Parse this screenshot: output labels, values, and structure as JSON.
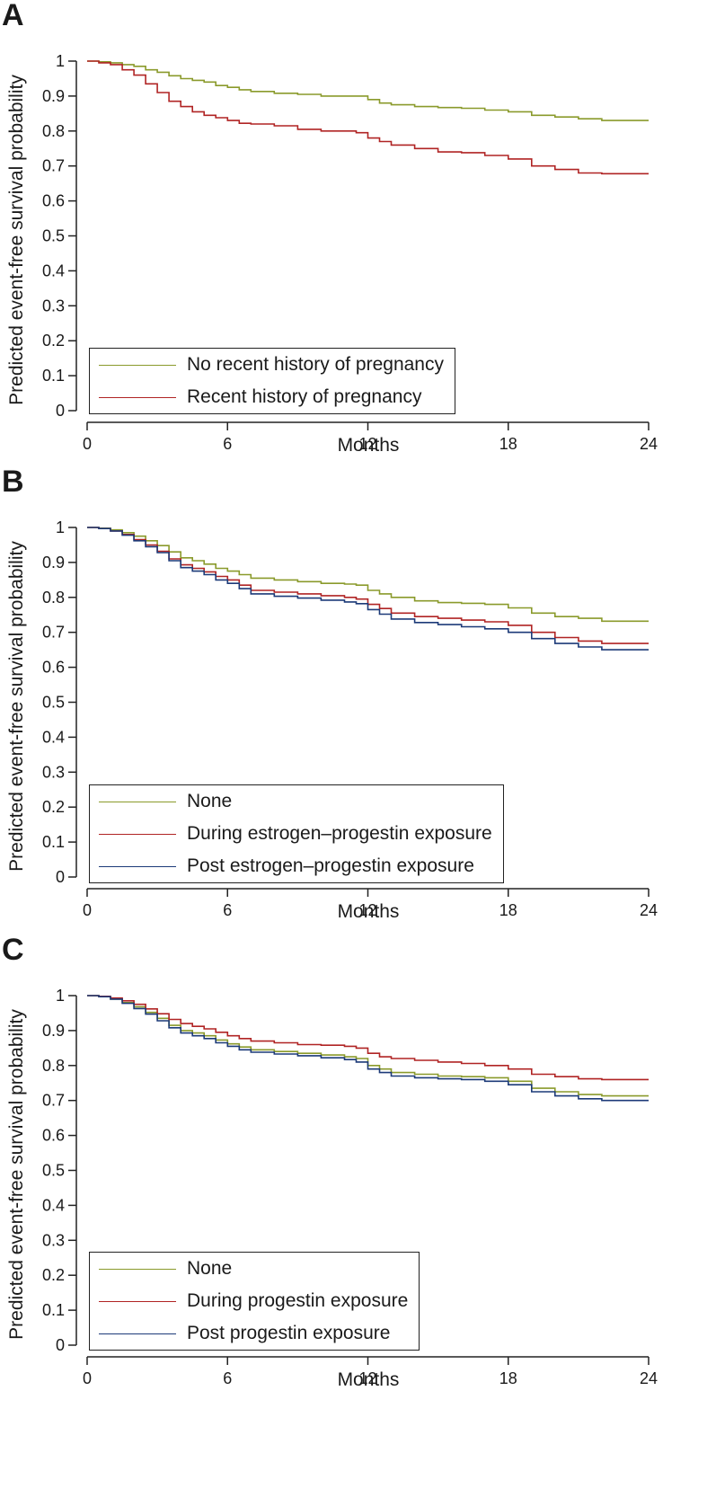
{
  "colors": {
    "olive": "#8a9a2b",
    "red": "#b02424",
    "navy": "#1c3a78",
    "axis": "#222222"
  },
  "chart_data": [
    {
      "panel": "A",
      "type": "line",
      "xlabel": "Months",
      "ylabel": "Predicted event-free survival probability",
      "xlim": [
        0,
        24
      ],
      "ylim": [
        0,
        1
      ],
      "xticks": [
        0,
        6,
        12,
        18,
        24
      ],
      "xtick_labels": [
        "0",
        "6",
        "12",
        "18",
        "24"
      ],
      "yticks": [
        0,
        0.1,
        0.2,
        0.3,
        0.4,
        0.5,
        0.6,
        0.7,
        0.8,
        0.9,
        1
      ],
      "ytick_labels": [
        "0",
        "0.1",
        "0.2",
        "0.3",
        "0.4",
        "0.5",
        "0.6",
        "0.7",
        "0.8",
        "0.9",
        "1"
      ],
      "legend_position": "bottom-left",
      "series": [
        {
          "name": "No recent history of pregnancy",
          "color_key": "olive",
          "x": [
            0,
            0.5,
            1,
            1.5,
            2,
            2.5,
            3,
            3.5,
            4,
            4.5,
            5,
            5.5,
            6,
            6.5,
            7,
            8,
            9,
            10,
            11,
            11.5,
            12,
            12.5,
            13,
            14,
            15,
            16,
            17,
            18,
            19,
            20,
            21,
            22,
            24
          ],
          "y": [
            1,
            0.998,
            0.995,
            0.99,
            0.985,
            0.975,
            0.968,
            0.958,
            0.95,
            0.945,
            0.94,
            0.93,
            0.925,
            0.918,
            0.913,
            0.908,
            0.905,
            0.9,
            0.9,
            0.9,
            0.89,
            0.88,
            0.875,
            0.87,
            0.867,
            0.865,
            0.86,
            0.855,
            0.845,
            0.84,
            0.835,
            0.83,
            0.83
          ]
        },
        {
          "name": "Recent history of pregnancy",
          "color_key": "red",
          "x": [
            0,
            0.5,
            1,
            1.5,
            2,
            2.5,
            3,
            3.5,
            4,
            4.5,
            5,
            5.5,
            6,
            6.5,
            7,
            8,
            9,
            10,
            11,
            11.5,
            12,
            12.5,
            13,
            14,
            15,
            16,
            17,
            18,
            19,
            20,
            21,
            22,
            24
          ],
          "y": [
            1,
            0.995,
            0.99,
            0.975,
            0.96,
            0.935,
            0.91,
            0.885,
            0.87,
            0.855,
            0.845,
            0.838,
            0.83,
            0.822,
            0.82,
            0.815,
            0.805,
            0.8,
            0.8,
            0.795,
            0.78,
            0.77,
            0.76,
            0.75,
            0.74,
            0.738,
            0.73,
            0.72,
            0.7,
            0.69,
            0.68,
            0.678,
            0.678
          ]
        }
      ]
    },
    {
      "panel": "B",
      "type": "line",
      "xlabel": "Months",
      "ylabel": "Predicted event-free survival probability",
      "xlim": [
        0,
        24
      ],
      "ylim": [
        0,
        1
      ],
      "xticks": [
        0,
        6,
        12,
        18,
        24
      ],
      "xtick_labels": [
        "0",
        "6",
        "12",
        "18",
        "24"
      ],
      "yticks": [
        0,
        0.1,
        0.2,
        0.3,
        0.4,
        0.5,
        0.6,
        0.7,
        0.8,
        0.9,
        1
      ],
      "ytick_labels": [
        "0",
        "0.1",
        "0.2",
        "0.3",
        "0.4",
        "0.5",
        "0.6",
        "0.7",
        "0.8",
        "0.9",
        "1"
      ],
      "legend_position": "bottom-left",
      "series": [
        {
          "name": "None",
          "color_key": "olive",
          "x": [
            0,
            0.5,
            1,
            1.5,
            2,
            2.5,
            3,
            3.5,
            4,
            4.5,
            5,
            5.5,
            6,
            6.5,
            7,
            8,
            9,
            10,
            11,
            11.5,
            12,
            12.5,
            13,
            14,
            15,
            16,
            17,
            18,
            19,
            20,
            21,
            22,
            24
          ],
          "y": [
            1,
            0.998,
            0.993,
            0.985,
            0.975,
            0.962,
            0.948,
            0.93,
            0.913,
            0.905,
            0.895,
            0.883,
            0.875,
            0.865,
            0.855,
            0.85,
            0.845,
            0.84,
            0.838,
            0.835,
            0.82,
            0.81,
            0.8,
            0.79,
            0.785,
            0.783,
            0.78,
            0.77,
            0.755,
            0.745,
            0.74,
            0.732,
            0.732
          ]
        },
        {
          "name": "During estrogen–progestin exposure",
          "color_key": "red",
          "x": [
            0,
            0.5,
            1,
            1.5,
            2,
            2.5,
            3,
            3.5,
            4,
            4.5,
            5,
            5.5,
            6,
            6.5,
            7,
            8,
            9,
            10,
            11,
            11.5,
            12,
            12.5,
            13,
            14,
            15,
            16,
            17,
            18,
            19,
            20,
            21,
            22,
            24
          ],
          "y": [
            1,
            0.997,
            0.99,
            0.98,
            0.965,
            0.95,
            0.932,
            0.91,
            0.893,
            0.883,
            0.873,
            0.86,
            0.85,
            0.835,
            0.82,
            0.815,
            0.81,
            0.805,
            0.8,
            0.795,
            0.78,
            0.768,
            0.755,
            0.745,
            0.74,
            0.735,
            0.73,
            0.72,
            0.7,
            0.685,
            0.675,
            0.668,
            0.668
          ]
        },
        {
          "name": "Post estrogen–progestin exposure",
          "color_key": "navy",
          "x": [
            0,
            0.5,
            1,
            1.5,
            2,
            2.5,
            3,
            3.5,
            4,
            4.5,
            5,
            5.5,
            6,
            6.5,
            7,
            8,
            9,
            10,
            11,
            11.5,
            12,
            12.5,
            13,
            14,
            15,
            16,
            17,
            18,
            19,
            20,
            21,
            22,
            24
          ],
          "y": [
            1,
            0.997,
            0.99,
            0.978,
            0.962,
            0.945,
            0.928,
            0.905,
            0.885,
            0.875,
            0.865,
            0.85,
            0.84,
            0.825,
            0.81,
            0.803,
            0.798,
            0.792,
            0.787,
            0.782,
            0.765,
            0.752,
            0.738,
            0.728,
            0.722,
            0.716,
            0.71,
            0.7,
            0.682,
            0.668,
            0.658,
            0.65,
            0.65
          ]
        }
      ]
    },
    {
      "panel": "C",
      "type": "line",
      "xlabel": "Months",
      "ylabel": "Predicted event-free survival probability",
      "xlim": [
        0,
        24
      ],
      "ylim": [
        0,
        1
      ],
      "xticks": [
        0,
        6,
        12,
        18,
        24
      ],
      "xtick_labels": [
        "0",
        "6",
        "12",
        "18",
        "24"
      ],
      "yticks": [
        0,
        0.1,
        0.2,
        0.3,
        0.4,
        0.5,
        0.6,
        0.7,
        0.8,
        0.9,
        1
      ],
      "ytick_labels": [
        "0",
        "0.1",
        "0.2",
        "0.3",
        "0.4",
        "0.5",
        "0.6",
        "0.7",
        "0.8",
        "0.9",
        "1"
      ],
      "legend_position": "bottom-left",
      "series": [
        {
          "name": "None",
          "color_key": "olive",
          "x": [
            0,
            0.5,
            1,
            1.5,
            2,
            2.5,
            3,
            3.5,
            4,
            4.5,
            5,
            5.5,
            6,
            6.5,
            7,
            8,
            9,
            10,
            11,
            11.5,
            12,
            12.5,
            13,
            14,
            15,
            16,
            17,
            18,
            19,
            20,
            21,
            22,
            24
          ],
          "y": [
            1,
            0.997,
            0.99,
            0.98,
            0.968,
            0.952,
            0.935,
            0.915,
            0.9,
            0.893,
            0.885,
            0.873,
            0.862,
            0.853,
            0.845,
            0.84,
            0.835,
            0.83,
            0.825,
            0.82,
            0.8,
            0.79,
            0.78,
            0.775,
            0.77,
            0.768,
            0.765,
            0.755,
            0.735,
            0.725,
            0.717,
            0.713,
            0.713
          ]
        },
        {
          "name": "During progestin exposure",
          "color_key": "red",
          "x": [
            0,
            0.5,
            1,
            1.5,
            2,
            2.5,
            3,
            3.5,
            4,
            4.5,
            5,
            5.5,
            6,
            6.5,
            7,
            8,
            9,
            10,
            11,
            11.5,
            12,
            12.5,
            13,
            14,
            15,
            16,
            17,
            18,
            19,
            20,
            21,
            22,
            24
          ],
          "y": [
            1,
            0.998,
            0.993,
            0.985,
            0.975,
            0.962,
            0.948,
            0.932,
            0.92,
            0.912,
            0.905,
            0.895,
            0.885,
            0.877,
            0.87,
            0.865,
            0.86,
            0.858,
            0.855,
            0.85,
            0.835,
            0.825,
            0.82,
            0.815,
            0.81,
            0.806,
            0.8,
            0.79,
            0.775,
            0.768,
            0.762,
            0.76,
            0.76
          ]
        },
        {
          "name": "Post progestin exposure",
          "color_key": "navy",
          "x": [
            0,
            0.5,
            1,
            1.5,
            2,
            2.5,
            3,
            3.5,
            4,
            4.5,
            5,
            5.5,
            6,
            6.5,
            7,
            8,
            9,
            10,
            11,
            11.5,
            12,
            12.5,
            13,
            14,
            15,
            16,
            17,
            18,
            19,
            20,
            21,
            22,
            24
          ],
          "y": [
            1,
            0.997,
            0.99,
            0.978,
            0.963,
            0.947,
            0.928,
            0.908,
            0.893,
            0.885,
            0.877,
            0.865,
            0.855,
            0.845,
            0.838,
            0.833,
            0.828,
            0.822,
            0.817,
            0.81,
            0.79,
            0.78,
            0.77,
            0.765,
            0.762,
            0.76,
            0.755,
            0.745,
            0.725,
            0.713,
            0.705,
            0.7,
            0.7
          ]
        }
      ]
    }
  ]
}
